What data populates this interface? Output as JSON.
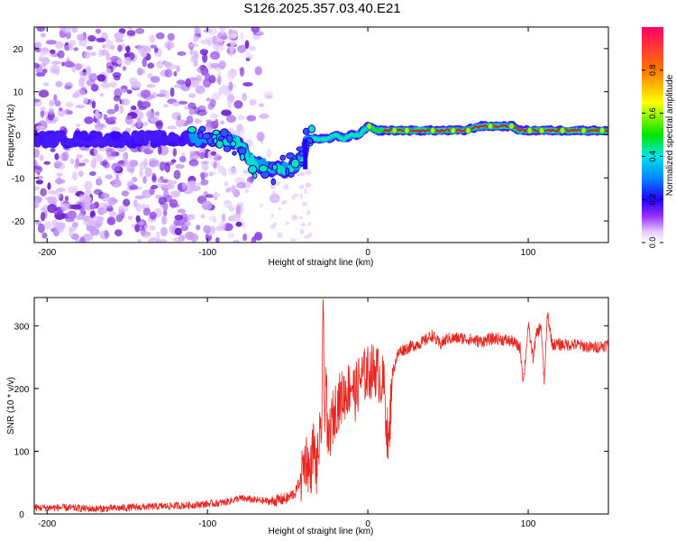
{
  "title": "S126.2025.357.03.40.E21",
  "colors": {
    "snr_line": "#e8251f",
    "track_core": "#d61e3c",
    "colormap": [
      "#ffffff",
      "#d9b3ff",
      "#7a00e6",
      "#0000ff",
      "#00e5e5",
      "#00e600",
      "#ffff00",
      "#ff6600",
      "#ff0066"
    ]
  },
  "chart_data": [
    {
      "type": "heatmap",
      "name": "spectrogram",
      "xlabel": "Height of straight line (km)",
      "ylabel": "Frequency (Hz)",
      "xlim": [
        -208,
        150
      ],
      "ylim": [
        -25,
        25
      ],
      "xticks": [
        -200,
        -100,
        0,
        100
      ],
      "xtick_labels": [
        "-200",
        "-100",
        "0",
        "100"
      ],
      "yticks": [
        20,
        10,
        0,
        -10,
        -20
      ],
      "ytick_labels": [
        "20",
        "10",
        "0",
        "-10",
        "-20"
      ],
      "track": {
        "x": [
          -208,
          -140,
          -120,
          -100,
          -90,
          -80,
          -75,
          -70,
          -65,
          -60,
          -55,
          -50,
          -45,
          -40,
          -38,
          -35,
          -30,
          -25,
          -20,
          -15,
          -10,
          -5,
          0,
          5,
          10,
          20,
          40,
          60,
          70,
          80,
          85,
          90,
          95,
          100,
          110,
          120,
          130,
          150
        ],
        "y": [
          -1,
          -1,
          -1,
          -1,
          -1,
          -2,
          -5,
          -7,
          -7,
          -8,
          -8,
          -8,
          -7,
          -5,
          -1,
          -1,
          -1,
          -1,
          0,
          -1,
          0,
          0,
          2,
          1,
          1,
          1,
          1,
          1,
          2,
          2,
          2,
          2,
          1,
          1,
          1,
          1,
          1,
          1
        ]
      },
      "colorbar": {
        "label": "Normalized spectral amplitude",
        "range": [
          0.0,
          1.0
        ],
        "ticks": [
          0.0,
          0.2,
          0.4,
          0.6,
          0.8
        ],
        "tick_labels": [
          "0.0",
          "0.2",
          "0.4",
          "0.6",
          "0.8"
        ]
      }
    },
    {
      "type": "line",
      "name": "snr",
      "xlabel": "Height of straight line (km)",
      "ylabel": "SNR (10 * v/v)",
      "xlim": [
        -208,
        150
      ],
      "ylim": [
        0,
        345
      ],
      "xticks": [
        -200,
        -100,
        0,
        100
      ],
      "xtick_labels": [
        "-200",
        "-100",
        "0",
        "100"
      ],
      "yticks": [
        0,
        100,
        200,
        300
      ],
      "ytick_labels": [
        "0",
        "100",
        "200",
        "300"
      ],
      "series": [
        {
          "name": "SNR",
          "x": [
            -208,
            -190,
            -170,
            -150,
            -130,
            -110,
            -100,
            -90,
            -80,
            -70,
            -60,
            -50,
            -45,
            -42,
            -40,
            -38,
            -36,
            -34,
            -32,
            -30,
            -29,
            -28,
            -27,
            -26,
            -25,
            -24,
            -22,
            -20,
            -18,
            -15,
            -12,
            -10,
            -8,
            -5,
            0,
            5,
            10,
            13,
            15,
            18,
            20,
            25,
            30,
            35,
            40,
            45,
            50,
            60,
            70,
            80,
            90,
            95,
            97,
            100,
            103,
            105,
            108,
            110,
            112,
            115,
            120,
            130,
            140,
            150
          ],
          "y": [
            10,
            10,
            8,
            10,
            12,
            14,
            16,
            18,
            25,
            22,
            20,
            25,
            35,
            55,
            80,
            90,
            60,
            110,
            70,
            120,
            100,
            340,
            160,
            230,
            90,
            130,
            150,
            170,
            180,
            190,
            200,
            210,
            190,
            215,
            225,
            230,
            205,
            100,
            220,
            250,
            260,
            265,
            270,
            275,
            285,
            270,
            280,
            280,
            275,
            280,
            275,
            265,
            210,
            300,
            250,
            285,
            300,
            210,
            320,
            270,
            270,
            270,
            265,
            270
          ]
        }
      ]
    }
  ]
}
